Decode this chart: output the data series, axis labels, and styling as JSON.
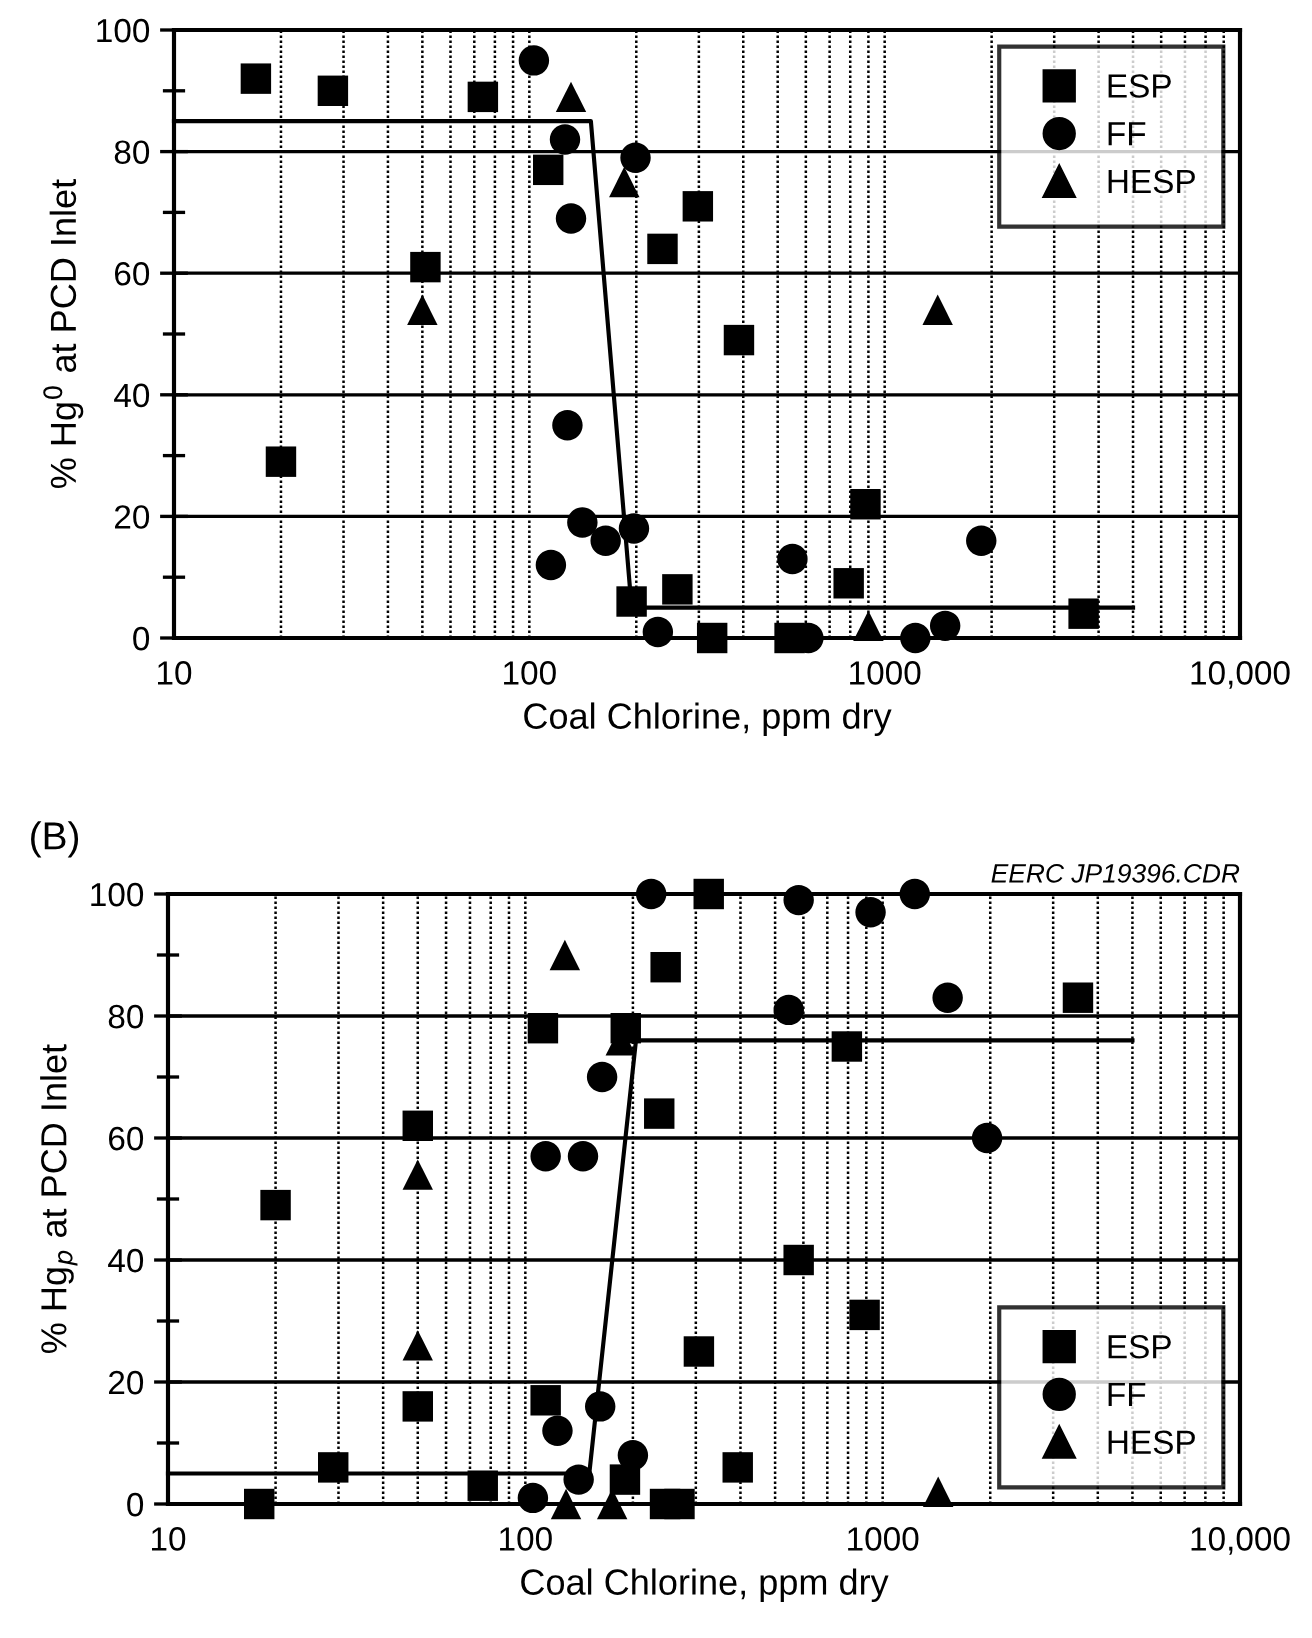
{
  "chart_data": [
    {
      "type": "scatter",
      "xlabel": "Coal Chlorine, ppm dry",
      "ylabel": "% Hg$^{0}$ at PCD Inlet",
      "log": "x",
      "grid": true,
      "legend": "top right",
      "xlim": [
        10,
        10000
      ],
      "xticks": [
        10,
        100,
        1000,
        {
          "value": 10000,
          "label": "10,000"
        }
      ],
      "ylim": [
        0,
        100
      ],
      "yticks": [
        0,
        20,
        40,
        60,
        80,
        100
      ],
      "series": [
        {
          "name": "ESP",
          "color": "#000000",
          "marker": "square",
          "x": [
            17,
            28,
            74,
            51,
            20,
            113,
            237,
            298,
            389,
            194,
            261,
            327,
            540,
            792,
            883,
            3630
          ],
          "values": [
            92,
            90,
            89,
            61,
            29,
            77,
            64,
            71,
            49,
            6,
            8,
            0,
            0,
            9,
            22,
            4
          ]
        },
        {
          "name": "FF",
          "color": "#000000",
          "marker": "circle",
          "x": [
            103,
            126,
            131,
            199,
            128,
            141,
            164,
            197,
            115,
            230,
            550,
            610,
            1220,
            1480,
            1870
          ],
          "values": [
            95,
            82,
            69,
            79,
            35,
            19,
            16,
            18,
            12,
            1,
            13,
            0,
            0,
            2,
            16
          ]
        },
        {
          "name": "HESP",
          "color": "#000000",
          "marker": "triangle",
          "x": [
            50,
            131,
            185,
            1410,
            900
          ],
          "values": [
            54,
            89,
            75,
            54,
            2
          ]
        },
        {
          "type": "line",
          "color": "#000000",
          "marker": "none",
          "x": [
            10,
            149,
            194,
            5000
          ],
          "values": [
            85,
            85,
            5,
            5
          ]
        }
      ]
    },
    {
      "type": "scatter",
      "title": "(B)",
      "xlabel": "Coal Chlorine, ppm dry",
      "ylabel": "% Hg$_{p}$ at PCD Inlet",
      "log": "x",
      "grid": true,
      "legend": "bottom right",
      "annotations": [
        "EERC JP19396.CDR"
      ],
      "xlim": [
        10,
        10000
      ],
      "xticks": [
        10,
        100,
        1000,
        {
          "value": 10000,
          "label": "10,000"
        }
      ],
      "ylim": [
        0,
        100
      ],
      "yticks": [
        0,
        20,
        40,
        60,
        80,
        100
      ],
      "series": [
        {
          "name": "ESP",
          "color": "#000000",
          "marker": "square",
          "x": [
            20,
            50,
            50,
            112,
            114,
            191,
            247,
            237,
            306,
            326,
            582,
            890,
            794,
            3520,
            393,
            29,
            18,
            76,
            190,
            246,
            270
          ],
          "values": [
            49,
            62,
            16,
            78,
            17,
            78,
            88,
            64,
            25,
            100,
            40,
            31,
            75,
            83,
            6,
            6,
            0,
            3,
            4,
            0,
            0
          ]
        },
        {
          "name": "FF",
          "color": "#000000",
          "marker": "circle",
          "x": [
            225,
            582,
            925,
            1230,
            546,
            1520,
            1960,
            164,
            114,
            145,
            123,
            162,
            141,
            200,
            105
          ],
          "values": [
            100,
            99,
            97,
            100,
            81,
            83,
            60,
            70,
            57,
            57,
            12,
            16,
            4,
            8,
            1
          ]
        },
        {
          "name": "HESP",
          "color": "#000000",
          "marker": "triangle",
          "x": [
            129,
            50,
            50,
            185,
            130,
            175,
            1430
          ],
          "values": [
            90,
            54,
            26,
            76,
            0,
            0,
            2
          ]
        },
        {
          "type": "line",
          "color": "#000000",
          "marker": "none",
          "x": [
            10,
            151,
            204,
            5000
          ],
          "values": [
            5,
            5,
            76,
            76
          ]
        }
      ]
    }
  ]
}
